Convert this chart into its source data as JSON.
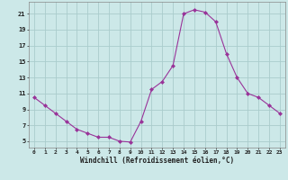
{
  "x": [
    0,
    1,
    2,
    3,
    4,
    5,
    6,
    7,
    8,
    9,
    10,
    11,
    12,
    13,
    14,
    15,
    16,
    17,
    18,
    19,
    20,
    21,
    22,
    23
  ],
  "y": [
    10.5,
    9.5,
    8.5,
    7.5,
    6.5,
    6.0,
    5.5,
    5.5,
    5.0,
    4.9,
    7.5,
    11.5,
    12.5,
    14.5,
    21.0,
    21.5,
    21.2,
    20.0,
    16.0,
    13.0,
    11.0,
    10.5,
    9.5,
    8.5
  ],
  "line_color": "#993399",
  "marker_color": "#993399",
  "bg_color": "#cce8e8",
  "grid_color": "#aacccc",
  "axis_label": "Windchill (Refroidissement éolien,°C)",
  "yticks": [
    5,
    7,
    9,
    11,
    13,
    15,
    17,
    19,
    21
  ],
  "xticks": [
    0,
    1,
    2,
    3,
    4,
    5,
    6,
    7,
    8,
    9,
    10,
    11,
    12,
    13,
    14,
    15,
    16,
    17,
    18,
    19,
    20,
    21,
    22,
    23
  ],
  "ylim": [
    4.2,
    22.5
  ],
  "xlim": [
    -0.5,
    23.5
  ]
}
